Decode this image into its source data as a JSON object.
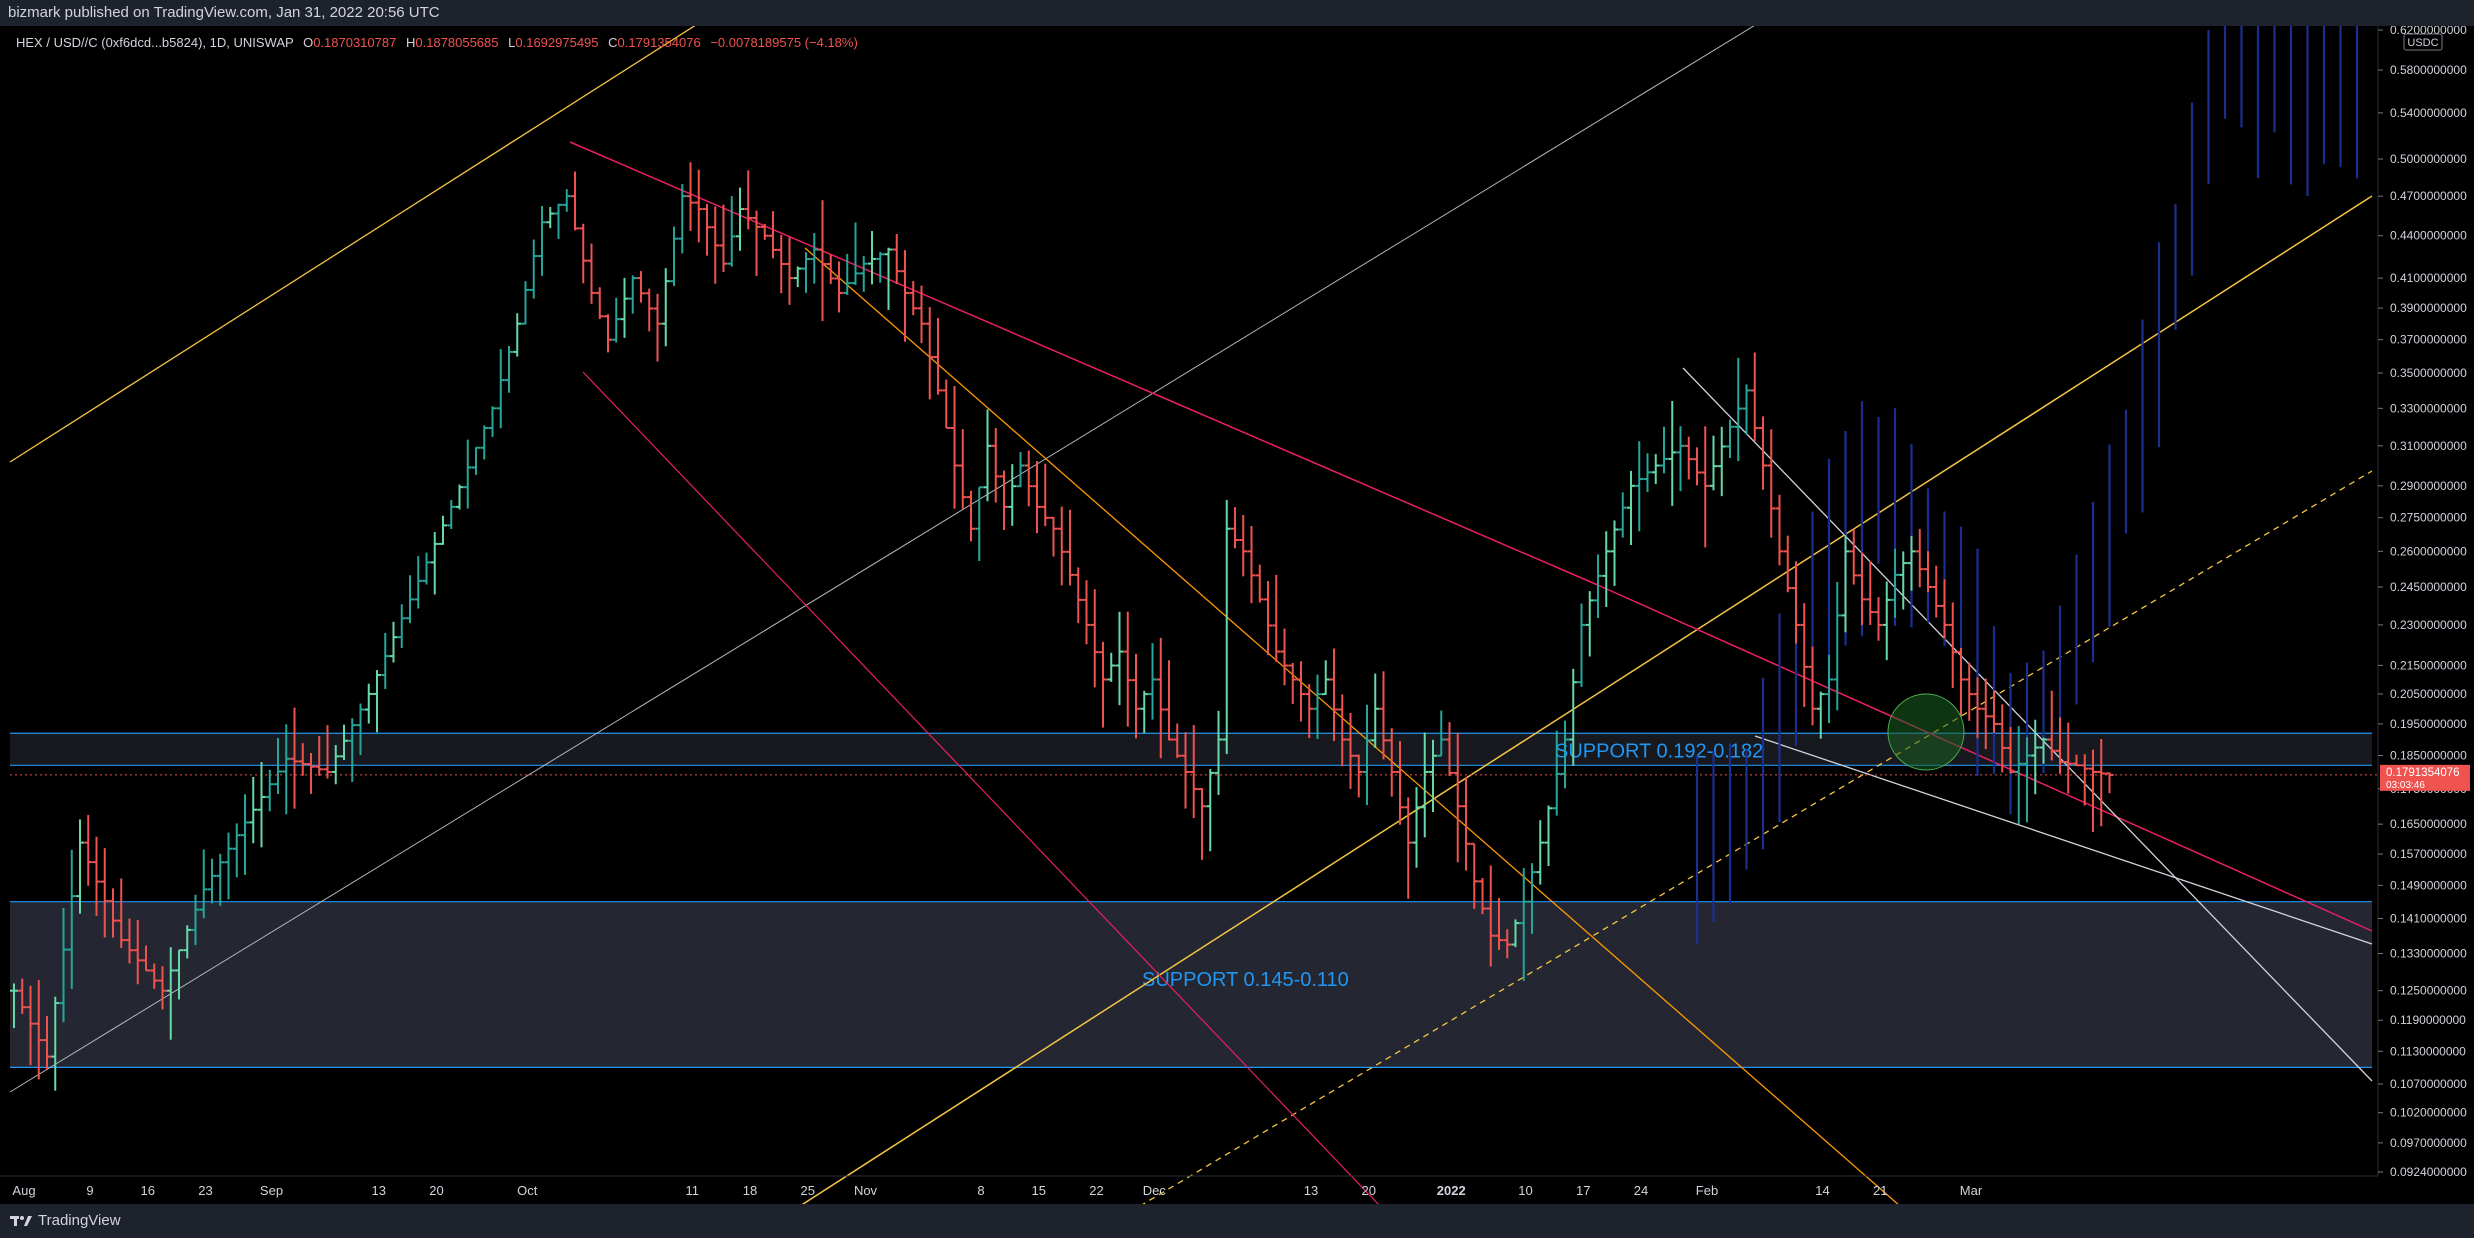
{
  "header": {
    "published": "bizmark published on TradingView.com, Jan 31, 2022 20:56 UTC"
  },
  "legend": {
    "symbol": "HEX / USD//C (0xf6dcd...b5824), 1D, UNISWAP",
    "open_label": "O",
    "open": "0.1870310787",
    "high_label": "H",
    "high": "0.1878055685",
    "low_label": "L",
    "low": "0.1692975495",
    "close_label": "C",
    "close": "0.1791354076",
    "change": "−0.0078189575 (−4.18%)"
  },
  "footer": {
    "brand": "TradingView"
  },
  "colors": {
    "up": "#26a69a",
    "up_light": "#66d9a8",
    "down": "#ef5350",
    "projection": "#1a2f8f",
    "zone_border": "#2196f3",
    "zone_fill": "#2a2e39",
    "orange": "#ff9800",
    "yellow": "#f5c542",
    "price_label_bg": "#ef5350",
    "axis_text": "#d1d4dc"
  },
  "chart_data": {
    "type": "bar",
    "title": "",
    "y_scale": "log",
    "ylim": [
      0.0924,
      0.62
    ],
    "y_ticks": [
      "0.6200000000",
      "0.5800000000",
      "0.5400000000",
      "0.5000000000",
      "0.4700000000",
      "0.4400000000",
      "0.4100000000",
      "0.3900000000",
      "0.3700000000",
      "0.3500000000",
      "0.3300000000",
      "0.3100000000",
      "0.2900000000",
      "0.2750000000",
      "0.2600000000",
      "0.2450000000",
      "0.2300000000",
      "0.2150000000",
      "0.2050000000",
      "0.1950000000",
      "0.1850000000",
      "0.1750000000",
      "0.1650000000",
      "0.1570000000",
      "0.1490000000",
      "0.1410000000",
      "0.1330000000",
      "0.1250000000",
      "0.1190000000",
      "0.1130000000",
      "0.1070000000",
      "0.1020000000",
      "0.0970000000",
      "0.0924000000"
    ],
    "x_ticks": [
      "Aug",
      "9",
      "16",
      "23",
      "Sep",
      "13",
      "20",
      "Oct",
      "11",
      "18",
      "25",
      "Nov",
      "8",
      "15",
      "22",
      "Dec",
      "13",
      "20",
      "2022",
      "10",
      "17",
      "24",
      "Feb",
      "14",
      "21",
      "Mar"
    ],
    "currency_badge": "USDC",
    "last_price": "0.1791354076",
    "countdown": "03:03:46",
    "zones": [
      {
        "label": "SUPPORT 0.192-0.182",
        "low": 0.182,
        "high": 0.192
      },
      {
        "label": "SUPPORT 0.145-0.110",
        "low": 0.11,
        "high": 0.145
      }
    ],
    "anchor_points": [
      [
        0,
        0.125
      ],
      [
        4,
        0.112
      ],
      [
        8,
        0.16
      ],
      [
        13,
        0.136
      ],
      [
        18,
        0.125
      ],
      [
        23,
        0.148
      ],
      [
        27,
        0.162
      ],
      [
        33,
        0.184
      ],
      [
        38,
        0.18
      ],
      [
        43,
        0.205
      ],
      [
        48,
        0.24
      ],
      [
        53,
        0.28
      ],
      [
        58,
        0.33
      ],
      [
        61,
        0.38
      ],
      [
        64,
        0.45
      ],
      [
        67,
        0.47
      ],
      [
        70,
        0.4
      ],
      [
        72,
        0.37
      ],
      [
        75,
        0.41
      ],
      [
        78,
        0.38
      ],
      [
        81,
        0.47
      ],
      [
        83,
        0.46
      ],
      [
        86,
        0.42
      ],
      [
        88,
        0.46
      ],
      [
        91,
        0.44
      ],
      [
        94,
        0.41
      ],
      [
        97,
        0.43
      ],
      [
        100,
        0.4
      ],
      [
        103,
        0.42
      ],
      [
        106,
        0.43
      ],
      [
        108,
        0.4
      ],
      [
        110,
        0.38
      ],
      [
        112,
        0.34
      ],
      [
        114,
        0.3
      ],
      [
        116,
        0.27
      ],
      [
        118,
        0.31
      ],
      [
        120,
        0.28
      ],
      [
        122,
        0.3
      ],
      [
        124,
        0.28
      ],
      [
        126,
        0.27
      ],
      [
        128,
        0.25
      ],
      [
        130,
        0.23
      ],
      [
        132,
        0.21
      ],
      [
        134,
        0.22
      ],
      [
        136,
        0.2
      ],
      [
        138,
        0.21
      ],
      [
        140,
        0.19
      ],
      [
        142,
        0.18
      ],
      [
        144,
        0.17
      ],
      [
        146,
        0.19
      ],
      [
        147,
        0.27
      ],
      [
        149,
        0.26
      ],
      [
        151,
        0.24
      ],
      [
        153,
        0.22
      ],
      [
        155,
        0.21
      ],
      [
        157,
        0.2
      ],
      [
        159,
        0.21
      ],
      [
        161,
        0.19
      ],
      [
        163,
        0.18
      ],
      [
        165,
        0.2
      ],
      [
        167,
        0.18
      ],
      [
        169,
        0.16
      ],
      [
        171,
        0.18
      ],
      [
        173,
        0.19
      ],
      [
        175,
        0.17
      ],
      [
        177,
        0.15
      ],
      [
        179,
        0.137
      ],
      [
        181,
        0.135
      ],
      [
        183,
        0.145
      ],
      [
        185,
        0.16
      ],
      [
        188,
        0.19
      ],
      [
        190,
        0.23
      ],
      [
        193,
        0.26
      ],
      [
        196,
        0.29
      ],
      [
        199,
        0.3
      ],
      [
        202,
        0.31
      ],
      [
        205,
        0.29
      ],
      [
        208,
        0.32
      ],
      [
        210,
        0.34
      ],
      [
        212,
        0.3
      ],
      [
        214,
        0.26
      ],
      [
        216,
        0.23
      ],
      [
        218,
        0.2
      ],
      [
        220,
        0.21
      ],
      [
        222,
        0.26
      ],
      [
        224,
        0.24
      ],
      [
        226,
        0.23
      ],
      [
        228,
        0.25
      ],
      [
        230,
        0.26
      ],
      [
        232,
        0.245
      ],
      [
        234,
        0.23
      ],
      [
        236,
        0.21
      ],
      [
        238,
        0.2
      ],
      [
        240,
        0.195
      ],
      [
        242,
        0.18
      ],
      [
        244,
        0.185
      ],
      [
        246,
        0.19
      ],
      [
        248,
        0.183
      ],
      [
        250,
        0.182
      ],
      [
        252,
        0.18
      ],
      [
        254,
        0.1791
      ]
    ],
    "projection_anchors": [
      [
        204,
        0.16
      ],
      [
        210,
        0.17
      ],
      [
        214,
        0.2
      ],
      [
        218,
        0.24
      ],
      [
        222,
        0.27
      ],
      [
        226,
        0.29
      ],
      [
        230,
        0.27
      ],
      [
        234,
        0.25
      ],
      [
        238,
        0.22
      ],
      [
        242,
        0.19
      ],
      [
        246,
        0.2
      ],
      [
        250,
        0.23
      ],
      [
        254,
        0.27
      ],
      [
        258,
        0.33
      ],
      [
        262,
        0.42
      ],
      [
        266,
        0.55
      ],
      [
        268,
        0.62
      ],
      [
        272,
        0.6
      ],
      [
        276,
        0.58
      ],
      [
        280,
        0.56
      ],
      [
        284,
        0.6
      ]
    ]
  }
}
